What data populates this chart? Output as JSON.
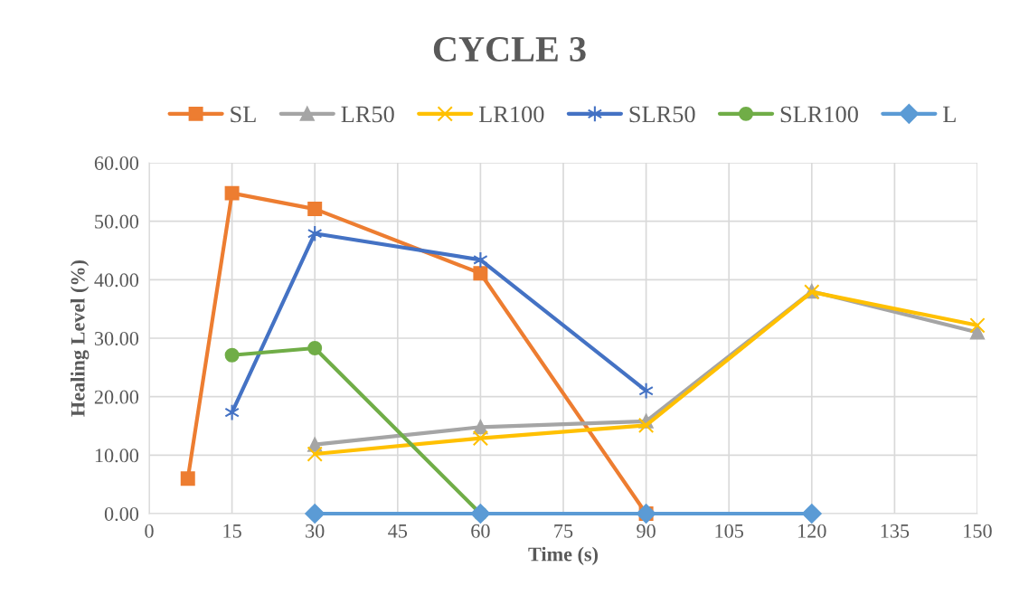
{
  "chart_data": {
    "type": "line",
    "title": "CYCLE 3",
    "xlabel": "Time (s)",
    "ylabel": "Healing Level (%)",
    "xlim": [
      0,
      150
    ],
    "xticks": [
      0,
      15,
      30,
      45,
      60,
      75,
      90,
      105,
      120,
      135,
      150
    ],
    "ylim": [
      0,
      60
    ],
    "yticks": [
      {
        "value": 0,
        "label": "0.00"
      },
      {
        "value": 10,
        "label": "10.00"
      },
      {
        "value": 20,
        "label": "20.00"
      },
      {
        "value": 30,
        "label": "30.00"
      },
      {
        "value": 40,
        "label": "40.00"
      },
      {
        "value": 50,
        "label": "50.00"
      },
      {
        "value": 60,
        "label": "60.00"
      }
    ],
    "grid": true,
    "legend": "top",
    "line_style": "solid",
    "series": [
      {
        "name": "SL",
        "color": "#ed7d31",
        "marker": "square",
        "x": [
          7,
          15,
          30,
          60,
          90
        ],
        "values": [
          6,
          54.8,
          52.1,
          41.1,
          0
        ]
      },
      {
        "name": "LR50",
        "color": "#a5a5a5",
        "marker": "triangle",
        "x": [
          30,
          60,
          90,
          120,
          150
        ],
        "values": [
          11.8,
          14.8,
          15.8,
          38,
          31
        ]
      },
      {
        "name": "LR100",
        "color": "#ffc000",
        "marker": "cross",
        "x": [
          30,
          60,
          90,
          120,
          150
        ],
        "values": [
          10.2,
          12.9,
          15.1,
          37.9,
          32.2
        ]
      },
      {
        "name": "SLR50",
        "color": "#4472c4",
        "marker": "cross",
        "x": [
          15,
          30,
          60,
          90
        ],
        "values": [
          17.3,
          47.9,
          43.4,
          21
        ]
      },
      {
        "name": "SLR100",
        "color": "#70ad47",
        "marker": "circle",
        "x": [
          15,
          30,
          60
        ],
        "values": [
          27.1,
          28.3,
          0
        ]
      },
      {
        "name": "L",
        "color": "#5b9bd5",
        "marker": "diamond",
        "x": [
          30,
          60,
          90,
          120
        ],
        "values": [
          0,
          0,
          0,
          0
        ]
      }
    ]
  }
}
